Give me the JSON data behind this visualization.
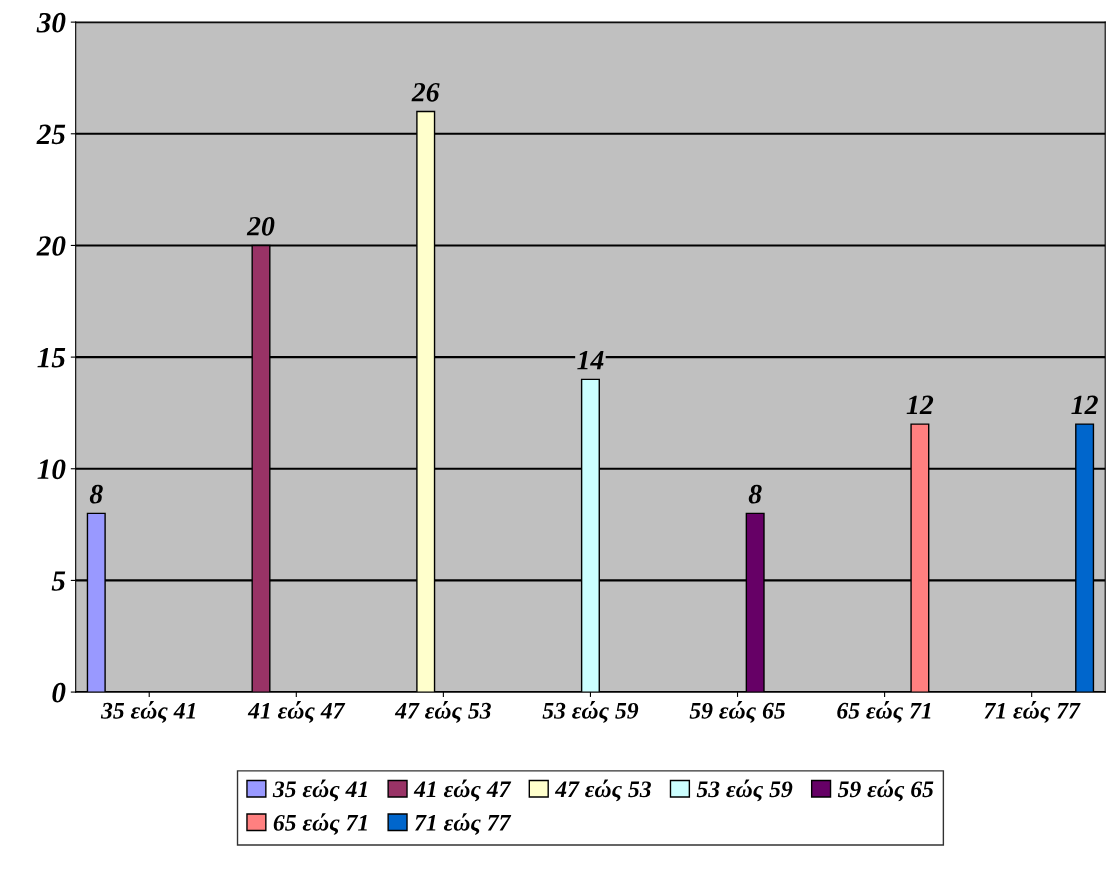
{
  "chart_data": {
    "type": "bar",
    "categories": [
      "35 εώς 41",
      "41 εώς 47",
      "47 εώς 53",
      "53 εώς 59",
      "59 εώς 65",
      "65 εώς 71",
      "71 εώς 77"
    ],
    "series": [
      {
        "name": "35 εώς 41",
        "color": "#9999ff",
        "values": [
          8,
          null,
          null,
          null,
          null,
          null,
          null
        ]
      },
      {
        "name": "41 εώς 47",
        "color": "#993366",
        "values": [
          null,
          20,
          null,
          null,
          null,
          null,
          null
        ]
      },
      {
        "name": "47 εώς 53",
        "color": "#ffffcc",
        "values": [
          null,
          null,
          26,
          null,
          null,
          null,
          null
        ]
      },
      {
        "name": "53 εώς 59",
        "color": "#ccffff",
        "values": [
          null,
          null,
          null,
          14,
          null,
          null,
          null
        ]
      },
      {
        "name": "59 εώς 65",
        "color": "#660066",
        "values": [
          null,
          null,
          null,
          null,
          8,
          null,
          null
        ]
      },
      {
        "name": "65 εώς 71",
        "color": "#ff8080",
        "values": [
          null,
          null,
          null,
          null,
          null,
          12,
          null
        ]
      },
      {
        "name": "71 εώς 77",
        "color": "#0066cc",
        "values": [
          null,
          null,
          null,
          null,
          null,
          null,
          12
        ]
      }
    ],
    "ylim": [
      0,
      30
    ],
    "yticks": [
      0,
      5,
      10,
      15,
      20,
      25,
      30
    ],
    "grid": "y",
    "legend": "bottom",
    "data_labels": true
  }
}
